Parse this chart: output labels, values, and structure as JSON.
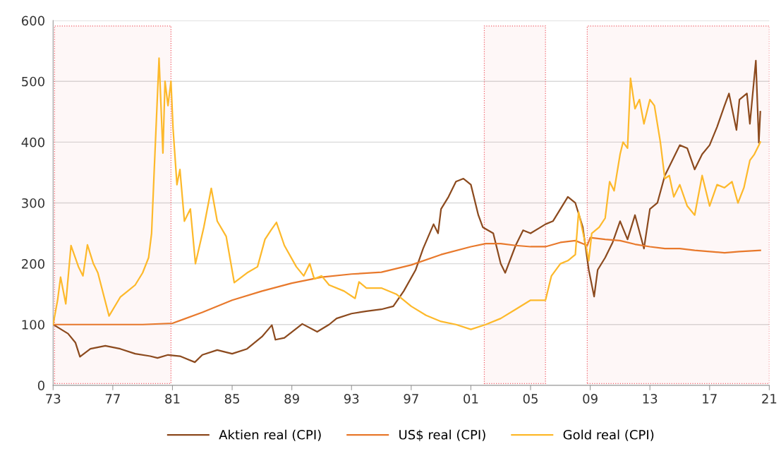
{
  "chart_data": {
    "type": "line",
    "xlim": [
      1973,
      2021
    ],
    "xticks": [
      {
        "value": 1973,
        "label": "73"
      },
      {
        "value": 1977,
        "label": "77"
      },
      {
        "value": 1981,
        "label": "81"
      },
      {
        "value": 1985,
        "label": "85"
      },
      {
        "value": 1989,
        "label": "89"
      },
      {
        "value": 1993,
        "label": "93"
      },
      {
        "value": 1997,
        "label": "97"
      },
      {
        "value": 2001,
        "label": "01"
      },
      {
        "value": 2005,
        "label": "05"
      },
      {
        "value": 2009,
        "label": "09"
      },
      {
        "value": 2013,
        "label": "13"
      },
      {
        "value": 2017,
        "label": "17"
      },
      {
        "value": 2021,
        "label": "21"
      }
    ],
    "ylim": [
      0,
      600
    ],
    "yticks": [
      0,
      100,
      200,
      300,
      400,
      500,
      600
    ],
    "grid": "y",
    "legend": "bottom",
    "marker": "none",
    "line_style": "solid",
    "bands": [
      {
        "axis": "x",
        "from": 1973.1,
        "to": 1980.9,
        "color": "#f0606a"
      },
      {
        "axis": "x",
        "from": 2001.9,
        "to": 2006.0,
        "color": "#f0606a"
      },
      {
        "axis": "x",
        "from": 2008.8,
        "to": 2021,
        "color": "#f0606a"
      }
    ],
    "series": [
      {
        "name": "Aktien real (CPI)",
        "color": "#8c4a1e",
        "x": [
          1973,
          1974,
          1974.5,
          1974.8,
          1975.5,
          1976.5,
          1977.5,
          1978.5,
          1979.5,
          1980,
          1980.7,
          1981.5,
          1982.5,
          1983,
          1984,
          1985,
          1986,
          1987,
          1987.66,
          1987.9,
          1988.5,
          1989.7,
          1990.7,
          1991.5,
          1992,
          1993,
          1994,
          1995,
          1995.8,
          1996.5,
          1997.3,
          1997.8,
          1998.5,
          1998.8,
          1999,
          1999.5,
          2000,
          2000.5,
          2001,
          2001.5,
          2001.8,
          2002.5,
          2003,
          2003.3,
          2004,
          2004.5,
          2005,
          2006,
          2006.5,
          2007,
          2007.5,
          2008,
          2008.5,
          2008.9,
          2009.26,
          2009.5,
          2010,
          2010.5,
          2011,
          2011.5,
          2012,
          2012.6,
          2013,
          2013.5,
          2014,
          2014.5,
          2015,
          2015.5,
          2016,
          2016.5,
          2017,
          2017.5,
          2018,
          2018.3,
          2018.8,
          2019,
          2019.5,
          2019.7,
          2020.1,
          2020.3,
          2020.4
        ],
        "values": [
          100,
          85,
          70,
          47,
          60,
          65,
          60,
          52,
          48,
          45,
          50,
          48,
          38,
          50,
          58,
          52,
          60,
          80,
          99,
          75,
          78,
          101,
          88,
          100,
          110,
          118,
          122,
          125,
          130,
          155,
          190,
          225,
          265,
          250,
          290,
          310,
          335,
          340,
          330,
          280,
          260,
          250,
          200,
          185,
          230,
          255,
          250,
          265,
          270,
          290,
          310,
          300,
          260,
          190,
          146,
          190,
          210,
          235,
          270,
          240,
          280,
          225,
          290,
          300,
          345,
          370,
          395,
          390,
          355,
          380,
          395,
          425,
          460,
          480,
          420,
          470,
          480,
          430,
          534,
          399,
          450
        ]
      },
      {
        "name": "US$ real (CPI)",
        "color": "#e8792c",
        "x": [
          1973,
          1975,
          1977,
          1979,
          1981,
          1983,
          1985,
          1987,
          1989,
          1991,
          1993,
          1995,
          1997,
          1999,
          2001,
          2002,
          2003,
          2004,
          2005,
          2006,
          2007,
          2008,
          2008.8,
          2009,
          2010,
          2011,
          2012,
          2013,
          2014,
          2015,
          2016,
          2017,
          2018,
          2019,
          2020.4
        ],
        "values": [
          100,
          100,
          100,
          100,
          102,
          120,
          140,
          155,
          168,
          178,
          183,
          186,
          198,
          215,
          228,
          233,
          233,
          230,
          228,
          228,
          235,
          238,
          230,
          243,
          240,
          238,
          232,
          228,
          225,
          225,
          222,
          220,
          218,
          220,
          222
        ]
      },
      {
        "name": "Gold real (CPI)",
        "color": "#fdb92b",
        "x": [
          1973,
          1973.3,
          1973.5,
          1973.85,
          1974.2,
          1974.7,
          1975.0,
          1975.3,
          1975.7,
          1976,
          1976.75,
          1977.5,
          1978,
          1978.5,
          1979,
          1979.4,
          1979.6,
          1979.76,
          1980.1,
          1980.36,
          1980.5,
          1980.7,
          1980.9,
          1981.04,
          1981.3,
          1981.5,
          1981.8,
          1982.2,
          1982.54,
          1983.1,
          1983.6,
          1984,
          1984.6,
          1985.14,
          1986,
          1986.7,
          1987.2,
          1987.6,
          1987.97,
          1988.5,
          1989.3,
          1989.8,
          1990.2,
          1990.5,
          1991,
          1991.5,
          1992.5,
          1993.24,
          1993.5,
          1994,
          1995,
          1996,
          1997,
          1998,
          1999,
          2000,
          2001,
          2002,
          2003,
          2004,
          2005,
          2006,
          2006.4,
          2007,
          2007.5,
          2008,
          2008.22,
          2008.7,
          2008.9,
          2009.1,
          2009.6,
          2010,
          2010.3,
          2010.6,
          2011,
          2011.2,
          2011.5,
          2011.7,
          2012,
          2012.3,
          2012.6,
          2013,
          2013.3,
          2013.7,
          2014,
          2014.3,
          2014.6,
          2015,
          2015.5,
          2016,
          2016.5,
          2017,
          2017.5,
          2018,
          2018.5,
          2018.9,
          2019.3,
          2019.7,
          2020,
          2020.3,
          2020.4
        ],
        "values": [
          100,
          140,
          178,
          134,
          230,
          195,
          180,
          231,
          200,
          185,
          114,
          145,
          155,
          165,
          185,
          210,
          250,
          344,
          538,
          382,
          500,
          460,
          500,
          422,
          330,
          355,
          270,
          290,
          200,
          260,
          324,
          270,
          245,
          169,
          185,
          195,
          240,
          255,
          268,
          230,
          195,
          180,
          200,
          175,
          180,
          165,
          155,
          143,
          170,
          160,
          160,
          150,
          130,
          115,
          105,
          100,
          92,
          100,
          110,
          125,
          140,
          140,
          180,
          200,
          205,
          215,
          285,
          230,
          205,
          250,
          260,
          275,
          335,
          320,
          380,
          400,
          390,
          505,
          455,
          470,
          430,
          470,
          460,
          400,
          340,
          345,
          310,
          330,
          295,
          280,
          345,
          295,
          330,
          325,
          335,
          300,
          325,
          370,
          380,
          395,
          400
        ]
      }
    ]
  }
}
